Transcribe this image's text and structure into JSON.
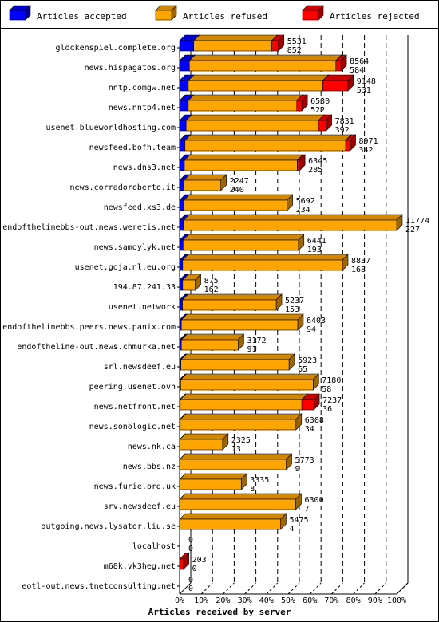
{
  "chart_data": {
    "type": "bar",
    "orientation": "horizontal",
    "stacked": true,
    "xlabel": "Articles received by server",
    "ticks": [
      "0%",
      "10%",
      "20%",
      "30%",
      "40%",
      "50%",
      "60%",
      "70%",
      "80%",
      "90%",
      "100%"
    ],
    "grid": true,
    "legend_position": "top",
    "series": [
      {
        "name": "Articles accepted",
        "color": "#0000ff"
      },
      {
        "name": "Articles refused",
        "color": "#ffa500"
      },
      {
        "name": "Articles rejected",
        "color": "#ff0000"
      }
    ],
    "rows": [
      {
        "server": "glockenspiel.complete.org",
        "label_top": "5531",
        "label_bottom": "852",
        "accepted_pct": 6.5,
        "refused_pct": 36.0,
        "rejected_pct": 3.0
      },
      {
        "server": "news.hispagatos.org",
        "label_top": "8564",
        "label_bottom": "584",
        "accepted_pct": 4.5,
        "refused_pct": 67.5,
        "rejected_pct": 2.3
      },
      {
        "server": "nntp.comgw.net",
        "label_top": "9148",
        "label_bottom": "531",
        "accepted_pct": 4.0,
        "refused_pct": 62.0,
        "rejected_pct": 11.5
      },
      {
        "server": "news.nntp4.net",
        "label_top": "6530",
        "label_bottom": "522",
        "accepted_pct": 4.0,
        "refused_pct": 50.0,
        "rejected_pct": 2.3
      },
      {
        "server": "usenet.blueworldhosting.com",
        "label_top": "7831",
        "label_bottom": "392",
        "accepted_pct": 3.0,
        "refused_pct": 61.0,
        "rejected_pct": 3.5
      },
      {
        "server": "newsfeed.bofh.team",
        "label_top": "8971",
        "label_bottom": "342",
        "accepted_pct": 2.5,
        "refused_pct": 74.0,
        "rejected_pct": 2.0
      },
      {
        "server": "news.dns3.net",
        "label_top": "6345",
        "label_bottom": "285",
        "accepted_pct": 2.2,
        "refused_pct": 52.0,
        "rejected_pct": 1.0
      },
      {
        "server": "news.corradoroberto.it",
        "label_top": "2247",
        "label_bottom": "240",
        "accepted_pct": 2.0,
        "refused_pct": 17.0,
        "rejected_pct": 0.0
      },
      {
        "server": "newsfeed.xs3.de",
        "label_top": "5692",
        "label_bottom": "234",
        "accepted_pct": 2.0,
        "refused_pct": 47.5,
        "rejected_pct": 0.0
      },
      {
        "server": "endofthelinebbs-out.news.weretis.net",
        "label_top": "11774",
        "label_bottom": "227",
        "accepted_pct": 1.9,
        "refused_pct": 98.1,
        "rejected_pct": 0.0
      },
      {
        "server": "news.samoylyk.net",
        "label_top": "6441",
        "label_bottom": "193",
        "accepted_pct": 1.6,
        "refused_pct": 53.1,
        "rejected_pct": 0.0
      },
      {
        "server": "usenet.goja.nl.eu.org",
        "label_top": "8837",
        "label_bottom": "168",
        "accepted_pct": 1.4,
        "refused_pct": 73.6,
        "rejected_pct": 0.0
      },
      {
        "server": "194.87.241.33",
        "label_top": "875",
        "label_bottom": "162",
        "accepted_pct": 1.4,
        "refused_pct": 5.8,
        "rejected_pct": 0.0
      },
      {
        "server": "usenet.network",
        "label_top": "5237",
        "label_bottom": "153",
        "accepted_pct": 1.3,
        "refused_pct": 43.2,
        "rejected_pct": 0.0
      },
      {
        "server": "endofthelinebbs.peers.news.panix.com",
        "label_top": "6403",
        "label_bottom": "94",
        "accepted_pct": 0.8,
        "refused_pct": 53.6,
        "rejected_pct": 0.0
      },
      {
        "server": "endoftheline-out.news.chmurka.net",
        "label_top": "3172",
        "label_bottom": "91",
        "accepted_pct": 0.8,
        "refused_pct": 26.2,
        "rejected_pct": 0.0
      },
      {
        "server": "srl.newsdeef.eu",
        "label_top": "5923",
        "label_bottom": "65",
        "accepted_pct": 0.6,
        "refused_pct": 49.8,
        "rejected_pct": 0.0
      },
      {
        "server": "peering.usenet.ovh",
        "label_top": "7180",
        "label_bottom": "58",
        "accepted_pct": 0.5,
        "refused_pct": 61.0,
        "rejected_pct": 0.0
      },
      {
        "server": "news.netfront.net",
        "label_top": "7237",
        "label_bottom": "36",
        "accepted_pct": 0.3,
        "refused_pct": 56.0,
        "rejected_pct": 5.5
      },
      {
        "server": "news.sonologic.net",
        "label_top": "6308",
        "label_bottom": "34",
        "accepted_pct": 0.3,
        "refused_pct": 53.3,
        "rejected_pct": 0.0
      },
      {
        "server": "news.nk.ca",
        "label_top": "2325",
        "label_bottom": "13",
        "accepted_pct": 0.1,
        "refused_pct": 19.7,
        "rejected_pct": 0.0
      },
      {
        "server": "news.bbs.nz",
        "label_top": "5773",
        "label_bottom": "9",
        "accepted_pct": 0.1,
        "refused_pct": 49.0,
        "rejected_pct": 0.0
      },
      {
        "server": "news.furie.org.uk",
        "label_top": "3335",
        "label_bottom": "8",
        "accepted_pct": 0.1,
        "refused_pct": 28.3,
        "rejected_pct": 0.0
      },
      {
        "server": "srv.newsdeef.eu",
        "label_top": "6300",
        "label_bottom": "7",
        "accepted_pct": 0.1,
        "refused_pct": 53.4,
        "rejected_pct": 0.0
      },
      {
        "server": "outgoing.news.lysator.liu.se",
        "label_top": "5475",
        "label_bottom": "4",
        "accepted_pct": 0.0,
        "refused_pct": 46.5,
        "rejected_pct": 0.0
      },
      {
        "server": "localhost",
        "label_top": "0",
        "label_bottom": "0",
        "accepted_pct": 0.0,
        "refused_pct": 0.0,
        "rejected_pct": 0.0
      },
      {
        "server": "m68k.vk3heg.net",
        "label_top": "203",
        "label_bottom": "0",
        "accepted_pct": 0.0,
        "refused_pct": 0.0,
        "rejected_pct": 1.7
      },
      {
        "server": "eotl-out.news.tnetconsulting.net",
        "label_top": "0",
        "label_bottom": "0",
        "accepted_pct": 0.0,
        "refused_pct": 0.0,
        "rejected_pct": 0.0
      }
    ]
  }
}
